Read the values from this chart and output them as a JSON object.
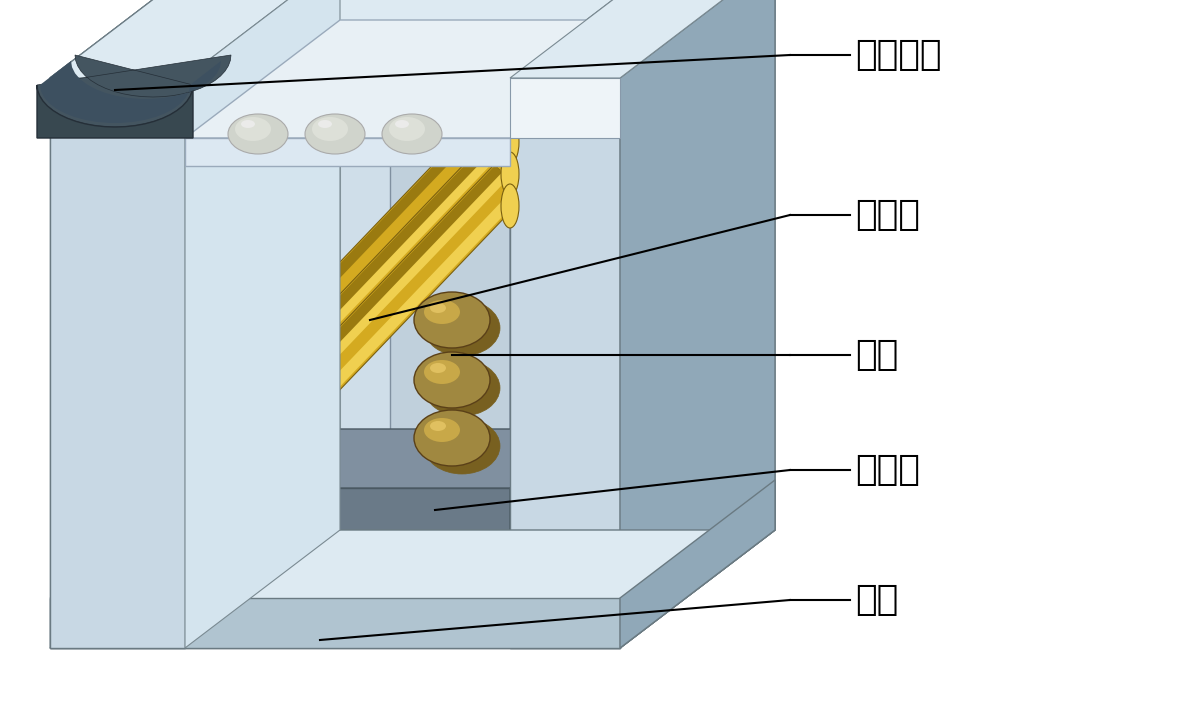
{
  "labels": {
    "hall": "霍尔元件",
    "wire": "铁镓丝",
    "contact": "触头",
    "magnet": "永磁体",
    "shell": "外壳"
  },
  "bg_color": "#ffffff",
  "label_fontsize": 26,
  "shell_light": "#c8d8e4",
  "shell_mid": "#b0c4d0",
  "shell_dark": "#90a8b8",
  "shell_inner": "#d4e4ee",
  "shell_top": "#ddeaf2",
  "white_bar": "#eef4f8",
  "hall_dark": "#384850",
  "hall_mid": "#445560",
  "yellow_main": "#d4aa20",
  "yellow_light": "#f0d050",
  "yellow_dark": "#9a7a10",
  "contact_main": "#a08840",
  "contact_light": "#c8a848",
  "contact_dark": "#786020",
  "magnet_main": "#6a7a88",
  "magnet_light": "#8090a0",
  "magnet_dark": "#4a5a68"
}
